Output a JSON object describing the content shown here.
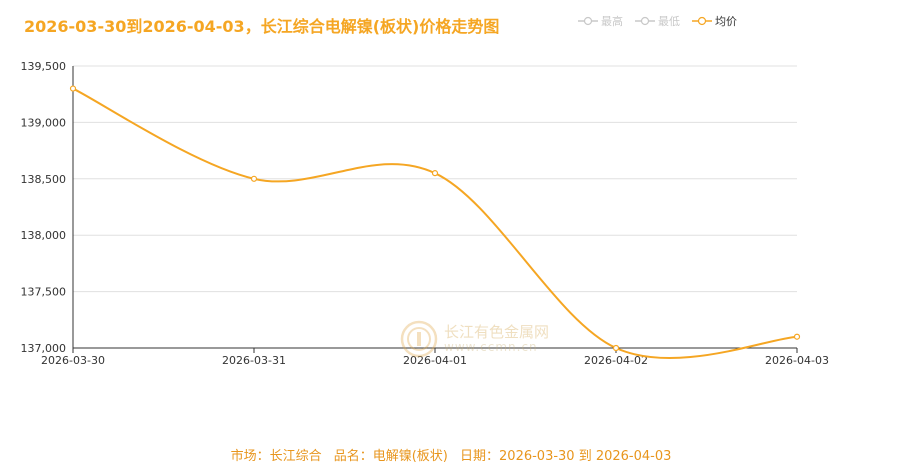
{
  "title": "2026-03-30到2026-04-03，长江综合电解镍(板状)价格走势图",
  "legend": [
    {
      "label": "最高",
      "active": false
    },
    {
      "label": "最低",
      "active": false
    },
    {
      "label": "均价",
      "active": true
    }
  ],
  "colors": {
    "accent": "#f5a623",
    "inactive": "#c8c8c8",
    "footer": "#e8961e",
    "grid": "#e0e0e0"
  },
  "chart_data": {
    "type": "line",
    "title": "2026-03-30到2026-04-03，长江综合电解镍(板状)价格走势图",
    "x": [
      "2026-03-30",
      "2026-03-31",
      "2026-04-01",
      "2026-04-02",
      "2026-04-03"
    ],
    "series": [
      {
        "name": "均价",
        "values": [
          139300,
          138500,
          138550,
          137000,
          137100
        ]
      }
    ],
    "ylim": [
      137000,
      139500
    ],
    "yticks": [
      "137,000",
      "137,500",
      "138,000",
      "138,500",
      "139,000",
      "139,500"
    ],
    "ytick_values": [
      137000,
      137500,
      138000,
      138500,
      139000,
      139500
    ],
    "grid": true,
    "legend_position": "top-right",
    "smooth": true
  },
  "watermark": {
    "name": "长江有色金属网",
    "url": "www.ccmn.cn"
  },
  "footer": {
    "market": "市场：长江综合",
    "product": "品名：电解镍(板状)",
    "date": "日期：2026-03-30 到 2026-04-03"
  }
}
